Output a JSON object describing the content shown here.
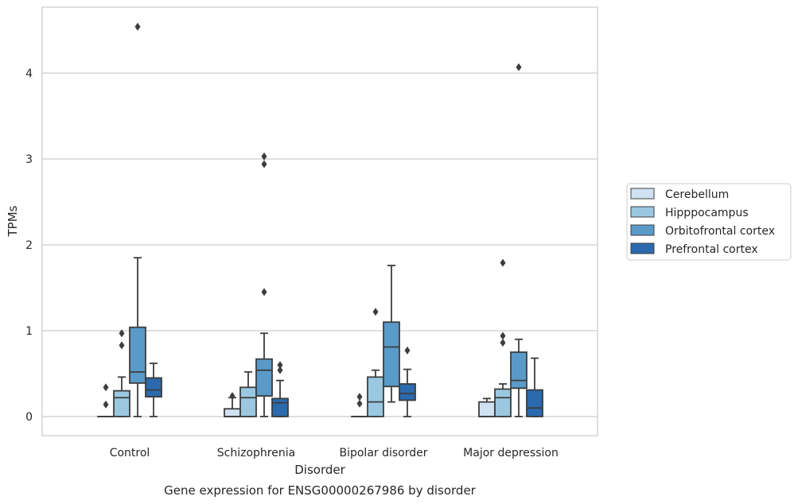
{
  "caption": "Gene expression for ENSG00000267986 by disorder",
  "chart_data": {
    "type": "boxplot",
    "xlabel": "Disorder",
    "ylabel": "TPMs",
    "ylim": [
      -0.22,
      4.8
    ],
    "yticks": [
      0,
      1,
      2,
      3,
      4
    ],
    "grid": "horizontal",
    "legend_position": "right",
    "categories": [
      "Control",
      "Schizophrenia",
      "Bipolar disorder",
      "Major depression"
    ],
    "series": [
      {
        "name": "Cerebellum",
        "color": "#d0e2f2",
        "boxes": [
          {
            "whisker_low": 0,
            "q1": 0,
            "median": 0,
            "q3": 0,
            "whisker_high": 0,
            "outliers": [
              0.34,
              0.14
            ]
          },
          {
            "whisker_low": 0,
            "q1": 0,
            "median": 0,
            "q3": 0.09,
            "whisker_high": 0.22,
            "outliers": [
              0.24
            ]
          },
          {
            "whisker_low": 0,
            "q1": 0,
            "median": 0,
            "q3": 0,
            "whisker_high": 0,
            "outliers": [
              0.23,
              0.15
            ]
          },
          {
            "whisker_low": 0,
            "q1": 0,
            "median": 0,
            "q3": 0.17,
            "whisker_high": 0.21,
            "outliers": []
          }
        ]
      },
      {
        "name": "Hipppocampus",
        "color": "#9ac8e0",
        "boxes": [
          {
            "whisker_low": 0,
            "q1": 0,
            "median": 0.22,
            "q3": 0.3,
            "whisker_high": 0.46,
            "outliers": [
              0.97,
              0.83
            ]
          },
          {
            "whisker_low": 0,
            "q1": 0,
            "median": 0.22,
            "q3": 0.34,
            "whisker_high": 0.52,
            "outliers": []
          },
          {
            "whisker_low": 0,
            "q1": 0,
            "median": 0.17,
            "q3": 0.46,
            "whisker_high": 0.54,
            "outliers": [
              1.22
            ]
          },
          {
            "whisker_low": 0,
            "q1": 0,
            "median": 0.22,
            "q3": 0.32,
            "whisker_high": 0.38,
            "outliers": [
              1.79,
              0.94,
              0.86
            ]
          }
        ]
      },
      {
        "name": "Orbitofrontal cortex",
        "color": "#5a9ac9",
        "boxes": [
          {
            "whisker_low": 0,
            "q1": 0.39,
            "median": 0.52,
            "q3": 1.04,
            "whisker_high": 1.85,
            "outliers": [
              4.54
            ]
          },
          {
            "whisker_low": 0,
            "q1": 0.24,
            "median": 0.54,
            "q3": 0.67,
            "whisker_high": 0.97,
            "outliers": [
              3.03,
              2.94,
              1.45
            ]
          },
          {
            "whisker_low": 0.17,
            "q1": 0.35,
            "median": 0.81,
            "q3": 1.1,
            "whisker_high": 1.76,
            "outliers": []
          },
          {
            "whisker_low": 0,
            "q1": 0.33,
            "median": 0.42,
            "q3": 0.75,
            "whisker_high": 0.9,
            "outliers": [
              4.07
            ]
          }
        ]
      },
      {
        "name": "Prefrontal cortex",
        "color": "#2a6aad",
        "boxes": [
          {
            "whisker_low": 0,
            "q1": 0.23,
            "median": 0.31,
            "q3": 0.45,
            "whisker_high": 0.62,
            "outliers": []
          },
          {
            "whisker_low": 0,
            "q1": 0,
            "median": 0.16,
            "q3": 0.21,
            "whisker_high": 0.42,
            "outliers": [
              0.6,
              0.54
            ]
          },
          {
            "whisker_low": 0,
            "q1": 0.19,
            "median": 0.27,
            "q3": 0.38,
            "whisker_high": 0.55,
            "outliers": [
              0.77
            ]
          },
          {
            "whisker_low": 0,
            "q1": 0,
            "median": 0.1,
            "q3": 0.31,
            "whisker_high": 0.68,
            "outliers": []
          }
        ]
      }
    ]
  }
}
